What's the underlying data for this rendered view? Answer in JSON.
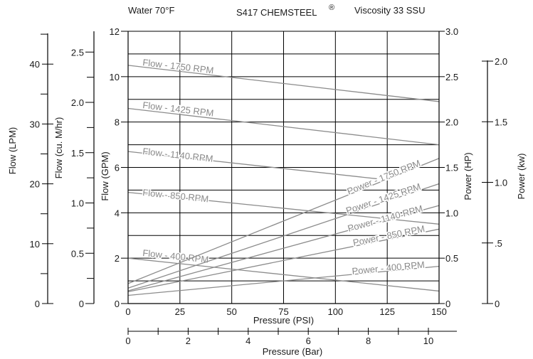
{
  "header": {
    "left": "Water 70°F",
    "center": "S417 CHEMSTEEL",
    "center_sup": "®",
    "right": "Viscosity 33 SSU"
  },
  "chart_data": {
    "type": "line",
    "title": "S417 CHEMSTEEL®",
    "x": {
      "label": "Pressure (PSI)",
      "ticks": [
        0,
        25,
        50,
        75,
        100,
        125,
        150
      ],
      "range": [
        0,
        150
      ]
    },
    "x2": {
      "label": "Pressure (Bar)",
      "ticks": [
        0,
        2,
        4,
        6,
        8,
        10
      ]
    },
    "y_left": [
      {
        "label": "Flow (LPM)",
        "ticks": [
          0,
          10,
          20,
          30,
          40
        ]
      },
      {
        "label": "Flow (cu. M/hr)",
        "ticks": [
          "0",
          "0.5",
          "1.0",
          "1.5",
          "2.0",
          "2.5"
        ]
      },
      {
        "label": "Flow (GPM)",
        "ticks": [
          0,
          2,
          4,
          6,
          8,
          10,
          12
        ],
        "range": [
          0,
          12
        ]
      }
    ],
    "y_right": [
      {
        "label": "Power (HP)",
        "ticks": [
          "0",
          "0.5",
          "1.0",
          "1.5",
          "2.0",
          "2.5",
          "3.0"
        ],
        "range": [
          0,
          3.0
        ]
      },
      {
        "label": "Power (kw)",
        "ticks": [
          "0",
          ".5",
          "1.0",
          "1.5",
          "2.0"
        ]
      }
    ],
    "grid": true,
    "flow_series": [
      {
        "name": "Flow - 1750 RPM",
        "x": [
          0,
          150
        ],
        "gpm": [
          10.5,
          8.9
        ]
      },
      {
        "name": "Flow - 1425 RPM",
        "x": [
          0,
          150
        ],
        "gpm": [
          8.6,
          7.0
        ]
      },
      {
        "name": "Flow - 1140 RPM",
        "x": [
          0,
          120
        ],
        "gpm": [
          6.7,
          5.5
        ]
      },
      {
        "name": "Flow - 850 RPM",
        "x": [
          0,
          150
        ],
        "gpm": [
          4.9,
          3.5
        ]
      },
      {
        "name": "Flow - 400 RPM",
        "x": [
          0,
          150
        ],
        "gpm": [
          2.0,
          0.55
        ]
      }
    ],
    "power_series": [
      {
        "name": "Power - 1750 RPM",
        "x": [
          0,
          150
        ],
        "hp": [
          0.22,
          1.6
        ]
      },
      {
        "name": "Power - 1425 RPM",
        "x": [
          0,
          150
        ],
        "hp": [
          0.17,
          1.32
        ]
      },
      {
        "name": "Power - 1140 RPM",
        "x": [
          0,
          150
        ],
        "hp": [
          0.14,
          1.08
        ]
      },
      {
        "name": "Power - 850 RPM",
        "x": [
          0,
          150
        ],
        "hp": [
          0.13,
          0.82
        ]
      },
      {
        "name": "Power - 400 RPM",
        "x": [
          0,
          150
        ],
        "hp": [
          0.09,
          0.41
        ]
      }
    ]
  }
}
